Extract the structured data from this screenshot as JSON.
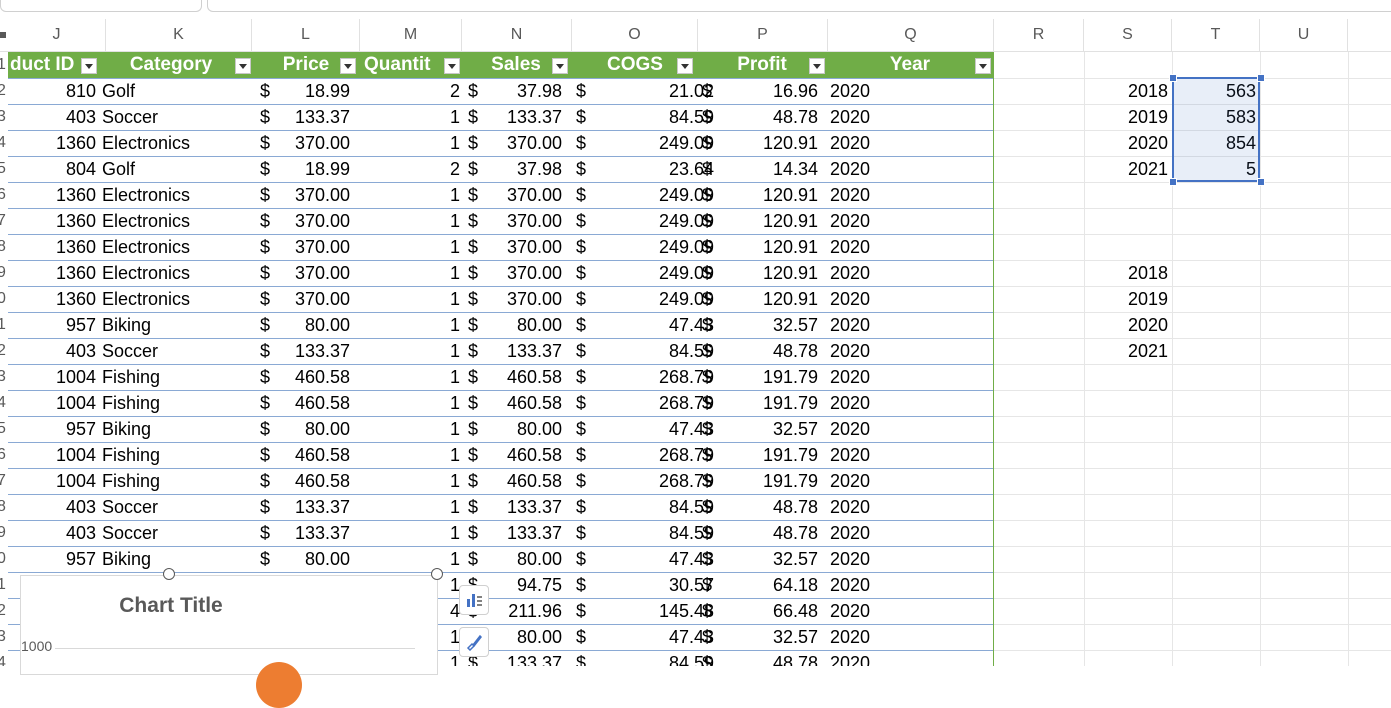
{
  "columns": [
    {
      "letter": "J"
    },
    {
      "letter": "K"
    },
    {
      "letter": "L"
    },
    {
      "letter": "M"
    },
    {
      "letter": "N"
    },
    {
      "letter": "O"
    },
    {
      "letter": "P"
    },
    {
      "letter": "Q"
    },
    {
      "letter": "R"
    },
    {
      "letter": "S"
    },
    {
      "letter": "T"
    },
    {
      "letter": "U"
    }
  ],
  "row_numbers": [
    "1",
    "2",
    "3",
    "4",
    "5",
    "6",
    "7",
    "8",
    "9",
    "0",
    "1",
    "2",
    "3",
    "4",
    "5",
    "6",
    "7",
    "8",
    "9",
    "0",
    "1",
    "2",
    "3",
    "4"
  ],
  "table": {
    "headers": [
      "duct ID",
      "Category",
      "Price",
      "Quantit",
      "Sales",
      "COGS",
      "Profit",
      "Year"
    ],
    "header_color": "#70ad47",
    "rows": [
      [
        "810",
        "Golf",
        "$",
        "18.99",
        "2",
        "$",
        "37.98",
        "$",
        "21.02",
        "$",
        "16.96",
        "2020"
      ],
      [
        "403",
        "Soccer",
        "$",
        "133.37",
        "1",
        "$",
        "133.37",
        "$",
        "84.59",
        "$",
        "48.78",
        "2020"
      ],
      [
        "1360",
        "Electronics",
        "$",
        "370.00",
        "1",
        "$",
        "370.00",
        "$",
        "249.09",
        "$",
        "120.91",
        "2020"
      ],
      [
        "804",
        "Golf",
        "$",
        "18.99",
        "2",
        "$",
        "37.98",
        "$",
        "23.64",
        "$",
        "14.34",
        "2020"
      ],
      [
        "1360",
        "Electronics",
        "$",
        "370.00",
        "1",
        "$",
        "370.00",
        "$",
        "249.09",
        "$",
        "120.91",
        "2020"
      ],
      [
        "1360",
        "Electronics",
        "$",
        "370.00",
        "1",
        "$",
        "370.00",
        "$",
        "249.09",
        "$",
        "120.91",
        "2020"
      ],
      [
        "1360",
        "Electronics",
        "$",
        "370.00",
        "1",
        "$",
        "370.00",
        "$",
        "249.09",
        "$",
        "120.91",
        "2020"
      ],
      [
        "1360",
        "Electronics",
        "$",
        "370.00",
        "1",
        "$",
        "370.00",
        "$",
        "249.09",
        "$",
        "120.91",
        "2020"
      ],
      [
        "1360",
        "Electronics",
        "$",
        "370.00",
        "1",
        "$",
        "370.00",
        "$",
        "249.09",
        "$",
        "120.91",
        "2020"
      ],
      [
        "957",
        "Biking",
        "$",
        "80.00",
        "1",
        "$",
        "80.00",
        "$",
        "47.43",
        "$",
        "32.57",
        "2020"
      ],
      [
        "403",
        "Soccer",
        "$",
        "133.37",
        "1",
        "$",
        "133.37",
        "$",
        "84.59",
        "$",
        "48.78",
        "2020"
      ],
      [
        "1004",
        "Fishing",
        "$",
        "460.58",
        "1",
        "$",
        "460.58",
        "$",
        "268.79",
        "$",
        "191.79",
        "2020"
      ],
      [
        "1004",
        "Fishing",
        "$",
        "460.58",
        "1",
        "$",
        "460.58",
        "$",
        "268.79",
        "$",
        "191.79",
        "2020"
      ],
      [
        "957",
        "Biking",
        "$",
        "80.00",
        "1",
        "$",
        "80.00",
        "$",
        "47.43",
        "$",
        "32.57",
        "2020"
      ],
      [
        "1004",
        "Fishing",
        "$",
        "460.58",
        "1",
        "$",
        "460.58",
        "$",
        "268.79",
        "$",
        "191.79",
        "2020"
      ],
      [
        "1004",
        "Fishing",
        "$",
        "460.58",
        "1",
        "$",
        "460.58",
        "$",
        "268.79",
        "$",
        "191.79",
        "2020"
      ],
      [
        "403",
        "Soccer",
        "$",
        "133.37",
        "1",
        "$",
        "133.37",
        "$",
        "84.59",
        "$",
        "48.78",
        "2020"
      ],
      [
        "403",
        "Soccer",
        "$",
        "133.37",
        "1",
        "$",
        "133.37",
        "$",
        "84.59",
        "$",
        "48.78",
        "2020"
      ],
      [
        "957",
        "Biking",
        "$",
        "80.00",
        "1",
        "$",
        "80.00",
        "$",
        "47.43",
        "$",
        "32.57",
        "2020"
      ],
      [
        "",
        "",
        "",
        "",
        "1",
        "$",
        "94.75",
        "$",
        "30.57",
        "$",
        "64.18",
        "2020"
      ],
      [
        "",
        "",
        "",
        "",
        "4",
        "$",
        "211.96",
        "$",
        "145.48",
        "$",
        "66.48",
        "2020"
      ],
      [
        "",
        "",
        "",
        "",
        "1",
        "$",
        "80.00",
        "$",
        "47.43",
        "$",
        "32.57",
        "2020"
      ],
      [
        "",
        "",
        "",
        "",
        "1",
        "$",
        "133.37",
        "$",
        "84.59",
        "$",
        "48.78",
        "2020"
      ]
    ]
  },
  "summary1": [
    {
      "year": "2018",
      "count": "563"
    },
    {
      "year": "2019",
      "count": "583"
    },
    {
      "year": "2020",
      "count": "854"
    },
    {
      "year": "2021",
      "count": "5"
    }
  ],
  "summary2": [
    "2018",
    "2019",
    "2020",
    "2021"
  ],
  "chart": {
    "title": "Chart Title",
    "y_tick": "1000"
  },
  "colors": {
    "selection": "#4472c4",
    "pie_slice": "#ed7d31"
  },
  "icons": {
    "chart_elements": "chart-elements-icon",
    "chart_styles": "brush-icon"
  }
}
